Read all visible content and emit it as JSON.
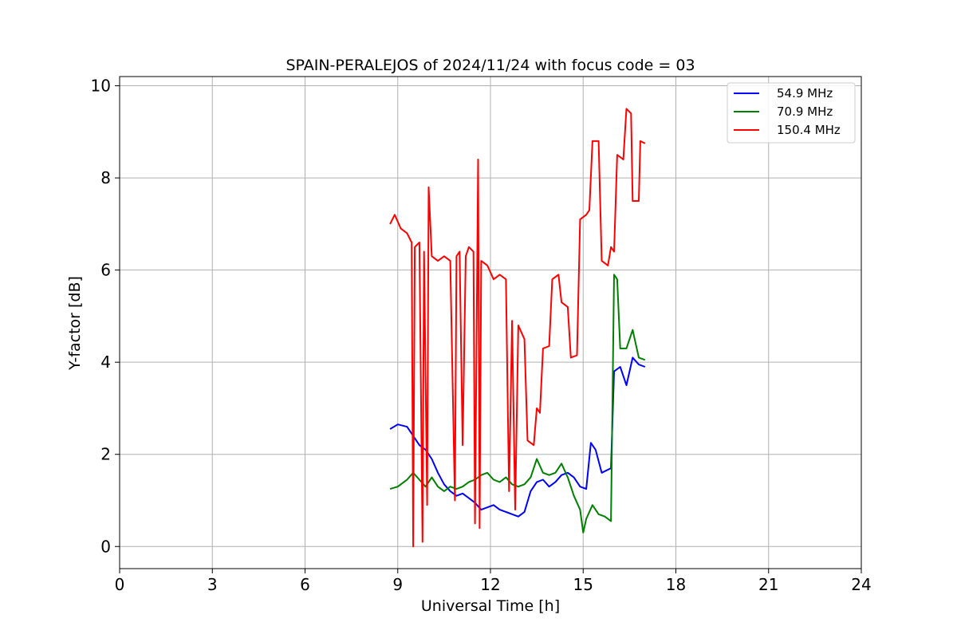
{
  "chart_data": {
    "type": "line",
    "title": "SPAIN-PERALEJOS of 2024/11/24 with focus code = 03",
    "xlabel": "Universal Time [h]",
    "ylabel": "Y-factor [dB]",
    "xlim": [
      0,
      24
    ],
    "ylim": [
      -0.48,
      10.2
    ],
    "xticks": [
      0,
      3,
      6,
      9,
      12,
      15,
      18,
      21,
      24
    ],
    "yticks": [
      0,
      2,
      4,
      6,
      8,
      10
    ],
    "grid": true,
    "legend_position": "top-right",
    "series": [
      {
        "name": "54.9 MHz",
        "color": "#0000ff",
        "points": [
          [
            8.75,
            2.55
          ],
          [
            9.0,
            2.65
          ],
          [
            9.3,
            2.6
          ],
          [
            9.5,
            2.4
          ],
          [
            9.7,
            2.2
          ],
          [
            9.9,
            2.1
          ],
          [
            10.1,
            1.9
          ],
          [
            10.3,
            1.6
          ],
          [
            10.5,
            1.35
          ],
          [
            10.7,
            1.2
          ],
          [
            10.9,
            1.1
          ],
          [
            11.1,
            1.15
          ],
          [
            11.3,
            1.05
          ],
          [
            11.5,
            0.95
          ],
          [
            11.7,
            0.8
          ],
          [
            11.9,
            0.85
          ],
          [
            12.1,
            0.9
          ],
          [
            12.3,
            0.8
          ],
          [
            12.5,
            0.75
          ],
          [
            12.7,
            0.7
          ],
          [
            12.9,
            0.65
          ],
          [
            13.1,
            0.75
          ],
          [
            13.3,
            1.2
          ],
          [
            13.5,
            1.4
          ],
          [
            13.7,
            1.45
          ],
          [
            13.9,
            1.3
          ],
          [
            14.1,
            1.4
          ],
          [
            14.3,
            1.55
          ],
          [
            14.5,
            1.6
          ],
          [
            14.7,
            1.5
          ],
          [
            14.9,
            1.3
          ],
          [
            15.1,
            1.25
          ],
          [
            15.25,
            2.25
          ],
          [
            15.4,
            2.1
          ],
          [
            15.6,
            1.6
          ],
          [
            15.9,
            1.7
          ],
          [
            16.0,
            3.8
          ],
          [
            16.2,
            3.9
          ],
          [
            16.4,
            3.5
          ],
          [
            16.6,
            4.1
          ],
          [
            16.8,
            3.95
          ],
          [
            17.0,
            3.9
          ]
        ]
      },
      {
        "name": "70.9 MHz",
        "color": "#008000",
        "points": [
          [
            8.75,
            1.25
          ],
          [
            9.0,
            1.3
          ],
          [
            9.3,
            1.45
          ],
          [
            9.5,
            1.6
          ],
          [
            9.7,
            1.45
          ],
          [
            9.9,
            1.3
          ],
          [
            10.1,
            1.5
          ],
          [
            10.3,
            1.3
          ],
          [
            10.5,
            1.2
          ],
          [
            10.7,
            1.3
          ],
          [
            10.9,
            1.25
          ],
          [
            11.1,
            1.3
          ],
          [
            11.3,
            1.4
          ],
          [
            11.5,
            1.45
          ],
          [
            11.7,
            1.55
          ],
          [
            11.9,
            1.6
          ],
          [
            12.1,
            1.45
          ],
          [
            12.3,
            1.4
          ],
          [
            12.5,
            1.5
          ],
          [
            12.7,
            1.35
          ],
          [
            12.9,
            1.3
          ],
          [
            13.1,
            1.35
          ],
          [
            13.3,
            1.5
          ],
          [
            13.5,
            1.9
          ],
          [
            13.7,
            1.6
          ],
          [
            13.9,
            1.55
          ],
          [
            14.1,
            1.6
          ],
          [
            14.3,
            1.8
          ],
          [
            14.5,
            1.5
          ],
          [
            14.7,
            1.1
          ],
          [
            14.9,
            0.8
          ],
          [
            15.0,
            0.3
          ],
          [
            15.1,
            0.6
          ],
          [
            15.3,
            0.9
          ],
          [
            15.5,
            0.7
          ],
          [
            15.7,
            0.65
          ],
          [
            15.9,
            0.55
          ],
          [
            16.0,
            5.9
          ],
          [
            16.1,
            5.8
          ],
          [
            16.2,
            4.3
          ],
          [
            16.4,
            4.3
          ],
          [
            16.6,
            4.7
          ],
          [
            16.8,
            4.1
          ],
          [
            17.0,
            4.05
          ]
        ]
      },
      {
        "name": "150.4 MHz",
        "color": "#ff0000",
        "points": [
          [
            8.75,
            7.0
          ],
          [
            8.9,
            7.2
          ],
          [
            9.1,
            6.9
          ],
          [
            9.3,
            6.8
          ],
          [
            9.45,
            6.6
          ],
          [
            9.5,
            0.0
          ],
          [
            9.55,
            6.5
          ],
          [
            9.7,
            6.6
          ],
          [
            9.8,
            0.1
          ],
          [
            9.85,
            6.4
          ],
          [
            9.95,
            0.9
          ],
          [
            10.0,
            7.8
          ],
          [
            10.1,
            6.3
          ],
          [
            10.3,
            6.2
          ],
          [
            10.5,
            6.3
          ],
          [
            10.7,
            6.2
          ],
          [
            10.85,
            1.0
          ],
          [
            10.9,
            6.3
          ],
          [
            11.0,
            6.4
          ],
          [
            11.1,
            2.2
          ],
          [
            11.2,
            6.3
          ],
          [
            11.3,
            6.5
          ],
          [
            11.45,
            6.4
          ],
          [
            11.5,
            0.5
          ],
          [
            11.6,
            8.4
          ],
          [
            11.65,
            0.4
          ],
          [
            11.7,
            6.2
          ],
          [
            11.9,
            6.1
          ],
          [
            12.1,
            5.8
          ],
          [
            12.3,
            5.9
          ],
          [
            12.5,
            5.8
          ],
          [
            12.6,
            1.2
          ],
          [
            12.7,
            4.9
          ],
          [
            12.8,
            0.8
          ],
          [
            12.9,
            4.8
          ],
          [
            13.1,
            4.5
          ],
          [
            13.2,
            2.3
          ],
          [
            13.4,
            2.2
          ],
          [
            13.5,
            3.0
          ],
          [
            13.6,
            2.9
          ],
          [
            13.7,
            4.3
          ],
          [
            13.9,
            4.35
          ],
          [
            14.0,
            5.8
          ],
          [
            14.2,
            5.9
          ],
          [
            14.3,
            5.3
          ],
          [
            14.5,
            5.2
          ],
          [
            14.6,
            4.1
          ],
          [
            14.8,
            4.15
          ],
          [
            14.9,
            7.1
          ],
          [
            15.1,
            7.2
          ],
          [
            15.2,
            7.3
          ],
          [
            15.3,
            8.8
          ],
          [
            15.5,
            8.8
          ],
          [
            15.6,
            6.2
          ],
          [
            15.8,
            6.1
          ],
          [
            15.9,
            6.5
          ],
          [
            16.0,
            6.4
          ],
          [
            16.1,
            8.5
          ],
          [
            16.3,
            8.4
          ],
          [
            16.4,
            9.5
          ],
          [
            16.55,
            9.4
          ],
          [
            16.6,
            7.5
          ],
          [
            16.8,
            7.5
          ],
          [
            16.85,
            8.8
          ],
          [
            17.0,
            8.75
          ]
        ]
      }
    ]
  }
}
